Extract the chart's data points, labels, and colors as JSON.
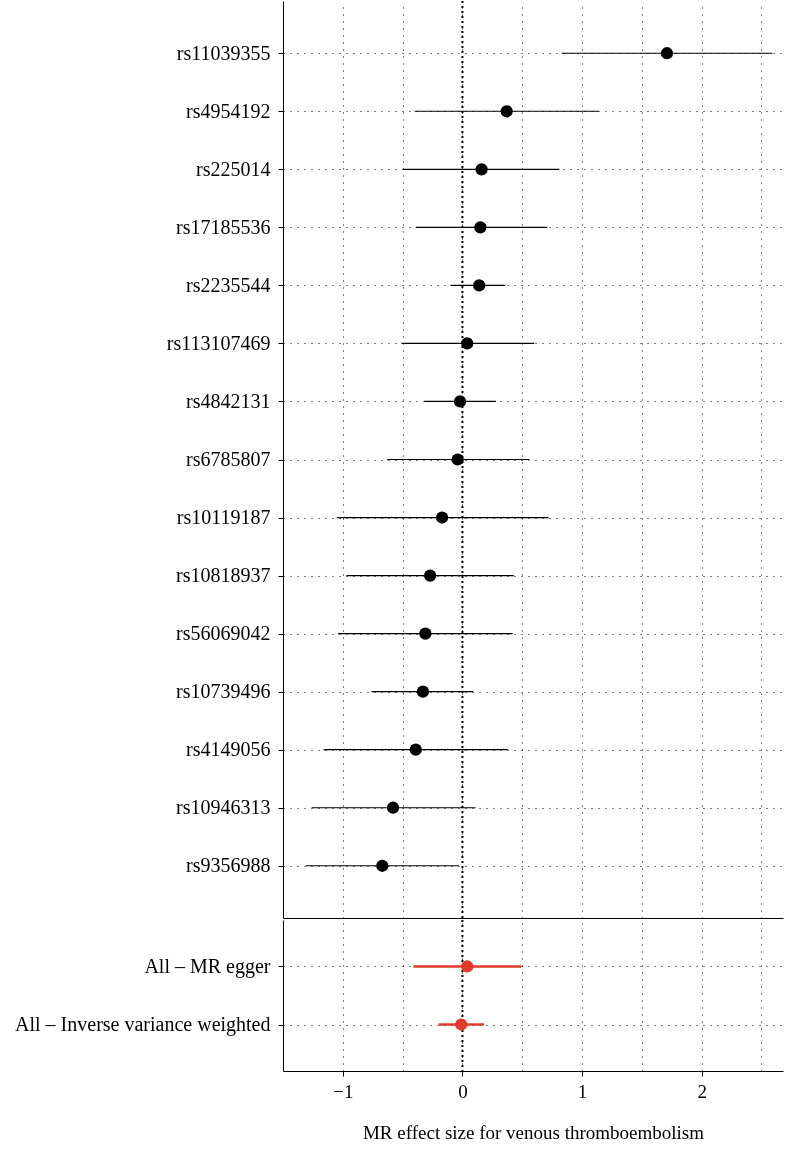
{
  "chart_data": [
    {
      "type": "scatter",
      "orientation": "horizontal",
      "categories": [
        "rs11039355",
        "rs4954192",
        "rs225014",
        "rs17185536",
        "rs2235544",
        "rs113107469",
        "rs4842131",
        "rs6785807",
        "rs10119187",
        "rs10818937",
        "rs56069042",
        "rs10739496",
        "rs4149056",
        "rs10946313",
        "rs9356988"
      ],
      "series": [
        {
          "color": "#000000",
          "values": [
            1.71,
            0.37,
            0.16,
            0.15,
            0.14,
            0.04,
            -0.02,
            -0.04,
            -0.17,
            -0.27,
            -0.31,
            -0.33,
            -0.39,
            -0.58,
            -0.67
          ],
          "errors": [
            [
              0.83,
              2.59
            ],
            [
              -0.4,
              1.14
            ],
            [
              -0.5,
              0.81
            ],
            [
              -0.39,
              0.71
            ],
            [
              -0.1,
              0.36
            ],
            [
              -0.51,
              0.6
            ],
            [
              -0.32,
              0.28
            ],
            [
              -0.63,
              0.56
            ],
            [
              -1.05,
              0.72
            ],
            [
              -0.97,
              0.43
            ],
            [
              -1.04,
              0.42
            ],
            [
              -0.76,
              0.09
            ],
            [
              -1.16,
              0.38
            ],
            [
              -1.26,
              0.11
            ],
            [
              -1.31,
              -0.03
            ]
          ]
        }
      ],
      "xlim": [
        -1.5,
        2.68
      ],
      "xticks": [
        -1,
        -0.5,
        0,
        0.5,
        1,
        1.5,
        2,
        2.5
      ],
      "grid": true,
      "marker": "circle",
      "tick_labels": "y",
      "ref_lines": [
        {
          "axis": "x",
          "value": 0,
          "line_style": "dotted"
        }
      ]
    },
    {
      "type": "scatter",
      "orientation": "horizontal",
      "categories": [
        "All – MR egger",
        "All – Inverse variance weighted"
      ],
      "series": [
        {
          "color": "#e03a2a",
          "values": [
            0.04,
            -0.01
          ],
          "errors": [
            [
              -0.41,
              0.49
            ],
            [
              -0.2,
              0.18
            ]
          ]
        }
      ],
      "xlim": [
        -1.5,
        2.68
      ],
      "xticks": [
        {
          "value": -1,
          "label": "−1"
        },
        {
          "value": -0.5,
          "label": null
        },
        0,
        {
          "value": 0.5,
          "label": null
        },
        1,
        {
          "value": 1.5,
          "label": null
        },
        2,
        {
          "value": 2.5,
          "label": null
        }
      ],
      "xlabel": "MR effect size for venous thromboembolism",
      "grid": true,
      "marker": "circle",
      "ref_lines": [
        {
          "axis": "x",
          "value": 0,
          "line_style": "dotted"
        }
      ]
    }
  ]
}
